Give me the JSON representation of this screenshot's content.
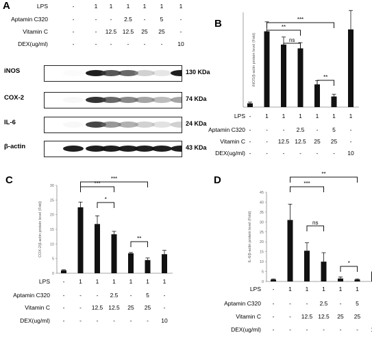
{
  "panel_a": {
    "label": "A",
    "condition_rows": [
      {
        "name": "LPS",
        "values": [
          "-",
          "1",
          "1",
          "1",
          "1",
          "1",
          "1"
        ]
      },
      {
        "name": "Aptamin C320",
        "values": [
          "-",
          "-",
          "-",
          "2.5",
          "-",
          "5",
          "-"
        ]
      },
      {
        "name": "Vitamin C",
        "values": [
          "-",
          "-",
          "12.5",
          "12.5",
          "25",
          "25",
          "-"
        ]
      },
      {
        "name": "DEX(ug/ml)",
        "values": [
          "-",
          "-",
          "-",
          "-",
          "-",
          "-",
          "10"
        ]
      }
    ],
    "blots": [
      {
        "name": "iNOS",
        "kda": "130 KDa",
        "intensities": [
          0.0,
          0.95,
          0.8,
          0.75,
          0.35,
          0.22,
          0.95
        ]
      },
      {
        "name": "COX-2",
        "kda": "74 KDa",
        "intensities": [
          0.05,
          0.9,
          0.75,
          0.65,
          0.55,
          0.45,
          0.55
        ]
      },
      {
        "name": "IL-6",
        "kda": "24 KDa",
        "intensities": [
          0.05,
          0.85,
          0.6,
          0.5,
          0.35,
          0.25,
          0.35
        ]
      },
      {
        "name": "β-actin",
        "kda": "43 KDa",
        "intensities": [
          0.95,
          0.95,
          0.95,
          0.95,
          0.95,
          0.95,
          0.95
        ]
      }
    ]
  },
  "chart_data": [
    {
      "panel": "B",
      "type": "bar",
      "ylabel": "iNOS/β-actin protein level (Fold)",
      "ylim": [
        0,
        25
      ],
      "yticks": [],
      "values": [
        1.0,
        20.0,
        16.5,
        15.5,
        6.0,
        2.8,
        20.5
      ],
      "errors": [
        0.3,
        2.5,
        2.0,
        1.5,
        1.0,
        0.6,
        5.0
      ],
      "brackets": [
        {
          "from": 1,
          "to": 5,
          "label": "***"
        },
        {
          "from": 1,
          "to": 3,
          "label": "**"
        },
        {
          "from": 2,
          "to": 3,
          "label": "ns"
        },
        {
          "from": 4,
          "to": 5,
          "label": "**"
        }
      ],
      "conditions": [
        {
          "name": "LPS",
          "values": [
            "-",
            "1",
            "1",
            "1",
            "1",
            "1",
            "1"
          ]
        },
        {
          "name": "Aptamin C320",
          "values": [
            "-",
            "-",
            "-",
            "2.5",
            "-",
            "5",
            "-"
          ]
        },
        {
          "name": "Vitamin C",
          "values": [
            "-",
            "-",
            "12.5",
            "12.5",
            "25",
            "25",
            "-"
          ]
        },
        {
          "name": "DEX(ug/ml)",
          "values": [
            "-",
            "-",
            "-",
            "-",
            "-",
            "-",
            "10"
          ]
        }
      ]
    },
    {
      "panel": "C",
      "type": "bar",
      "ylabel": "COX-2/β-actin protein level (Fold)",
      "ylim": [
        0,
        30
      ],
      "yticks": [
        "0",
        "5",
        "10",
        "15",
        "20",
        "25",
        "30"
      ],
      "values": [
        1.0,
        22.5,
        16.8,
        13.3,
        6.8,
        4.5,
        6.5
      ],
      "errors": [
        0.2,
        1.8,
        2.8,
        1.0,
        0.3,
        0.7,
        1.3
      ],
      "brackets": [
        {
          "from": 1,
          "to": 5,
          "label": "***"
        },
        {
          "from": 1,
          "to": 3,
          "label": "***"
        },
        {
          "from": 2,
          "to": 3,
          "label": "*"
        },
        {
          "from": 4,
          "to": 5,
          "label": "**"
        }
      ],
      "conditions": [
        {
          "name": "LPS",
          "values": [
            "-",
            "1",
            "1",
            "1",
            "1",
            "1",
            "1"
          ]
        },
        {
          "name": "Aptamin C320",
          "values": [
            "-",
            "-",
            "-",
            "2.5",
            "-",
            "5",
            "-"
          ]
        },
        {
          "name": "Vitamin C",
          "values": [
            "-",
            "-",
            "12.5",
            "12.5",
            "25",
            "25",
            "-"
          ]
        },
        {
          "name": "DEX(ug/ml)",
          "values": [
            "-",
            "-",
            "-",
            "-",
            "-",
            "-",
            "10"
          ]
        }
      ]
    },
    {
      "panel": "D",
      "type": "bar",
      "ylabel": "IL-6/β-actin protein level (Fold)",
      "ylim": [
        0,
        45
      ],
      "yticks": [
        "0",
        "5",
        "10",
        "15",
        "20",
        "25",
        "30",
        "35",
        "40",
        "45"
      ],
      "values": [
        1.0,
        31.0,
        15.5,
        10.0,
        1.5,
        1.0,
        5.0
      ],
      "errors": [
        0.3,
        8.0,
        4.0,
        4.5,
        0.8,
        0.3,
        1.5
      ],
      "brackets": [
        {
          "from": 1,
          "to": 5,
          "label": "**"
        },
        {
          "from": 1,
          "to": 3,
          "label": "***"
        },
        {
          "from": 2,
          "to": 3,
          "label": "ns"
        },
        {
          "from": 4,
          "to": 5,
          "label": "*"
        }
      ],
      "conditions": [
        {
          "name": "LPS",
          "values": [
            "-",
            "1",
            "1",
            "1",
            "1",
            "1",
            "1"
          ]
        },
        {
          "name": "Aptamin C320",
          "values": [
            "-",
            "-",
            "-",
            "2.5",
            "-",
            "5",
            "-"
          ]
        },
        {
          "name": "Vitamin C",
          "values": [
            "-",
            "-",
            "12.5",
            "12.5",
            "25",
            "25",
            "-"
          ]
        },
        {
          "name": "DEX(ug/ml)",
          "values": [
            "-",
            "-",
            "-",
            "-",
            "-",
            "-",
            "10"
          ]
        }
      ]
    }
  ]
}
